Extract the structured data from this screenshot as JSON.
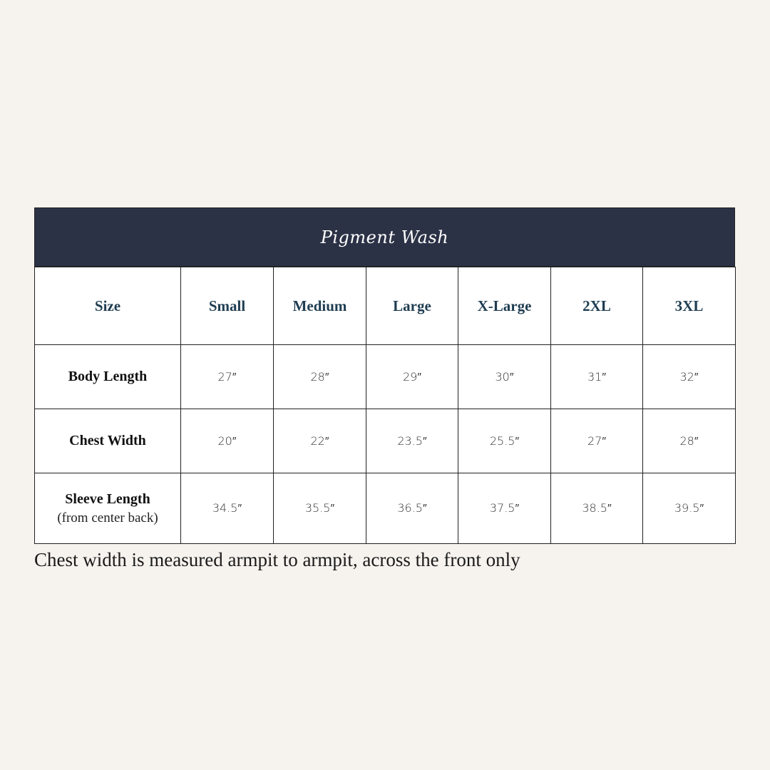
{
  "title": "Pigment Wash",
  "header": [
    "Size",
    "Small",
    "Medium",
    "Large",
    "X-Large",
    "2XL",
    "3XL"
  ],
  "rows": [
    {
      "label": "Body Length",
      "sub": "",
      "values": [
        "27″",
        "28″",
        "29″",
        "30″",
        "31″",
        "32″"
      ]
    },
    {
      "label": "Chest Width",
      "sub": "",
      "values": [
        "20″",
        "22″",
        "23.5″",
        "25.5″",
        "27″",
        "28″"
      ]
    },
    {
      "label": "Sleeve Length",
      "sub": "(from center back)",
      "values": [
        "34.5″",
        "35.5″",
        "36.5″",
        "37.5″",
        "38.5″",
        "39.5″"
      ]
    }
  ],
  "note": "Chest width is measured armpit to armpit, across the front only",
  "colors": {
    "background": "#f6f3ee",
    "title_bar": "#2c3246",
    "header_text": "#1f3d52"
  }
}
